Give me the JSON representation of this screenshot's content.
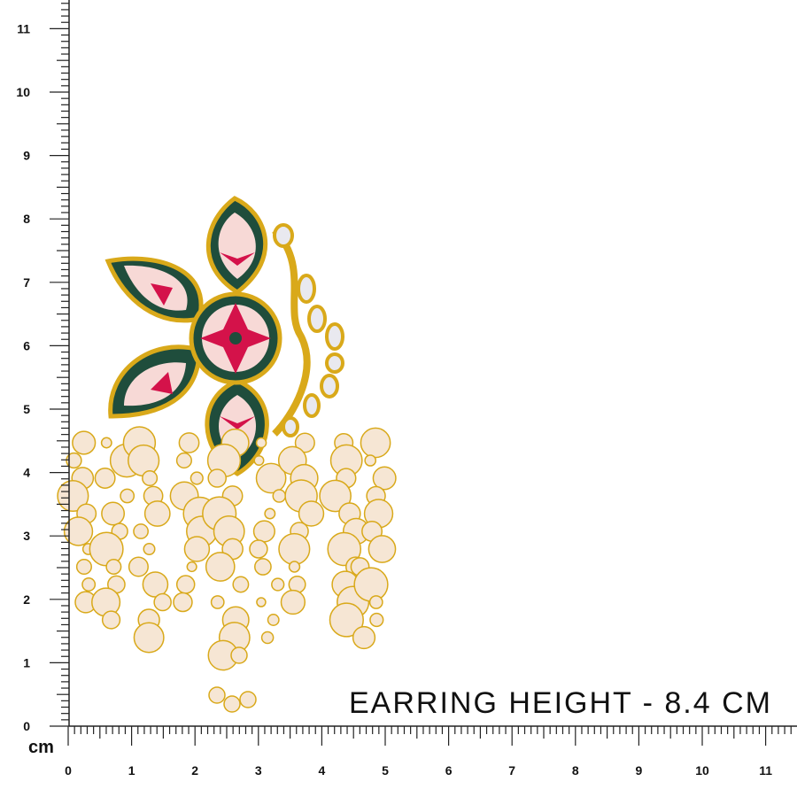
{
  "ruler": {
    "unit": "cm",
    "y_labels": [
      0,
      1,
      2,
      3,
      4,
      5,
      6,
      7,
      8,
      9,
      10,
      11
    ],
    "x_labels": [
      0,
      1,
      2,
      3,
      4,
      5,
      6,
      7,
      8,
      9,
      10,
      11
    ]
  },
  "caption": "EARRING HEIGHT - 8.4 CM"
}
